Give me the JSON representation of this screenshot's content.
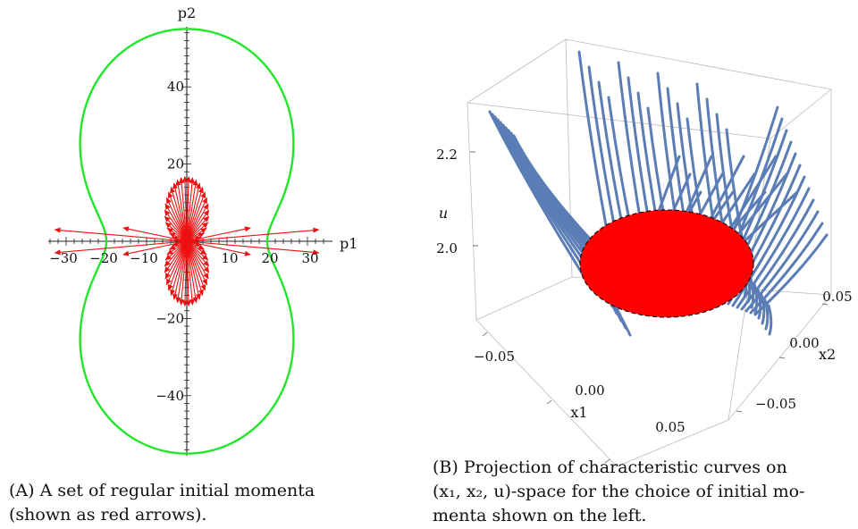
{
  "figure_a": {
    "caption_tag": "(A)",
    "caption_text": "A set of regular initial momenta",
    "caption_text_2": "(shown as red arrows)."
  },
  "figure_b": {
    "caption_tag": "(B)",
    "caption_text": "Projection of characteristic curves on",
    "caption_text_2": "(x₁, x₂, u)-space for the choice of initial mo-",
    "caption_text_3": "menta shown on the left."
  },
  "colors": {
    "curve": "#22e62a",
    "arrow": "#ee1111",
    "disk": "#ff0000",
    "line3d": "#5b7db5",
    "box": "#bbbbbb"
  },
  "chart_data": [
    {
      "type": "line",
      "xlabel": "p1",
      "ylabel": "p2",
      "xlim": [
        -35,
        35
      ],
      "ylim": [
        -55,
        55
      ],
      "x_ticks": [
        -30,
        -20,
        -10,
        10,
        20,
        30
      ],
      "y_ticks": [
        -40,
        -20,
        20,
        40
      ],
      "curve": {
        "description_free": true,
        "r0": 20,
        "amp": 35,
        "points_param": "r(t) = 20 + 35*sin^2(t), closed curve"
      },
      "arrows": {
        "count": 60
      }
    },
    {
      "type": "scatter",
      "xlabel": "x1",
      "ylabel": "x2",
      "zlabel": "u",
      "x_ticks": [
        -0.05,
        0.0,
        0.05
      ],
      "y_ticks": [
        -0.05,
        0.0,
        0.05
      ],
      "z_ticks": [
        2.0,
        2.2
      ],
      "x_tick_labels": [
        "−0.05",
        "0.00",
        "0.05"
      ],
      "y_tick_labels": [
        "−0.05",
        "0.00",
        "0.05"
      ],
      "z_tick_labels": [
        "2.0",
        "2.2"
      ]
    }
  ]
}
